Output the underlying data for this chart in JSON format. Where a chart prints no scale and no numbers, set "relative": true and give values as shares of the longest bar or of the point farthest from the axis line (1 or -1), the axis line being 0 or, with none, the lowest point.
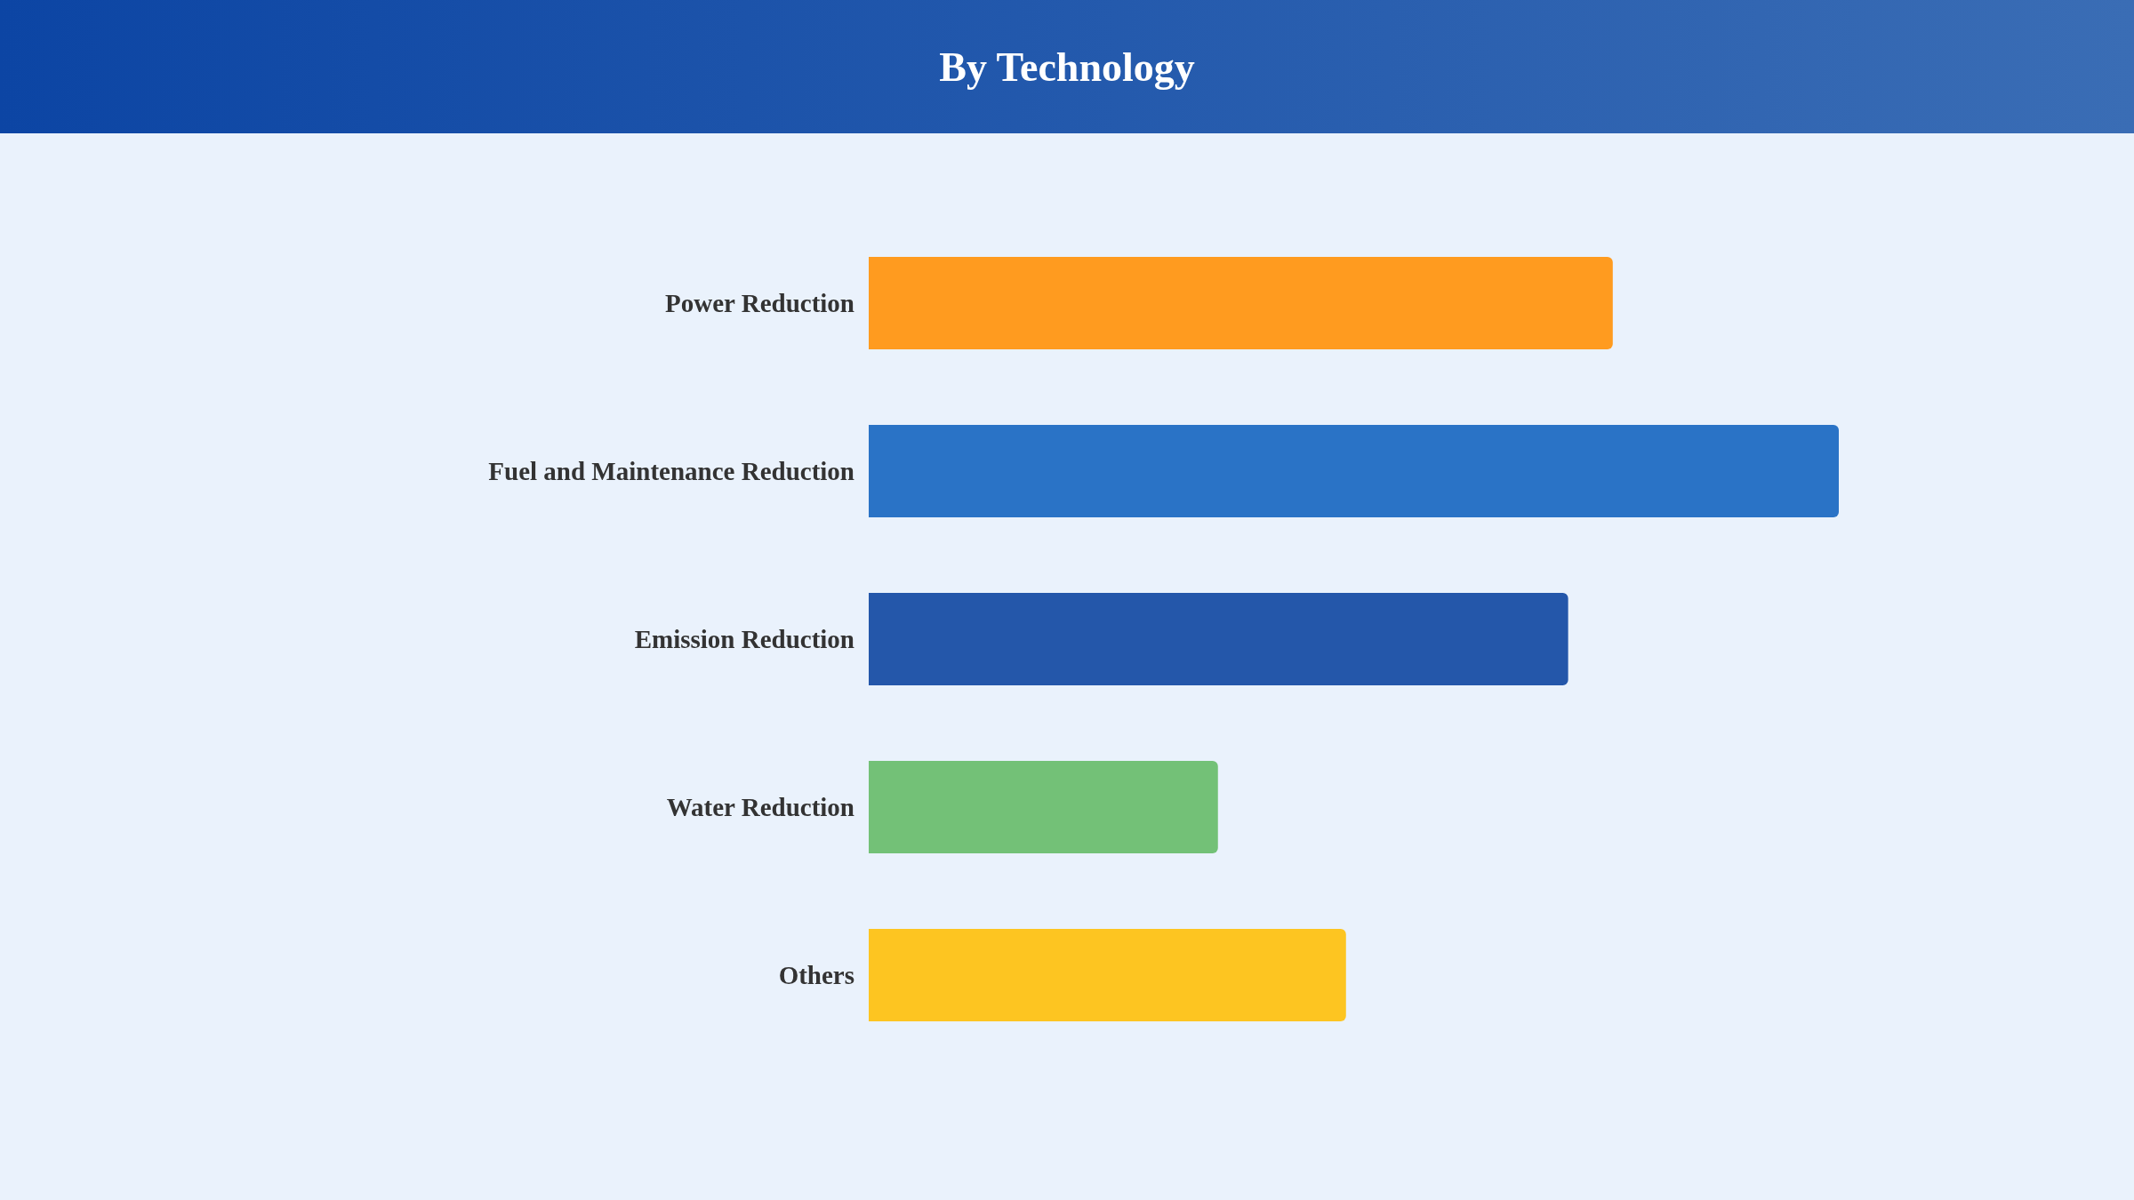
{
  "chart_data": {
    "type": "bar",
    "title": "By Technology",
    "orientation": "horizontal",
    "relative": true,
    "categories": [
      "Power Reduction",
      "Fuel and Maintenance Reduction",
      "Emission Reduction",
      "Water Reduction",
      "Others"
    ],
    "values": [
      0.767,
      1,
      0.721,
      0.36,
      0.492
    ],
    "colors": [
      "#ff9b1f",
      "#2a73c6",
      "#2457aa",
      "#73c177",
      "#fdc521"
    ]
  }
}
